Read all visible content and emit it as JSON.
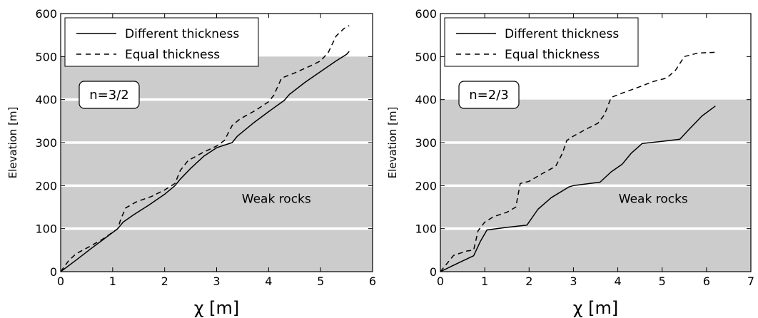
{
  "chart_data": [
    {
      "type": "line",
      "xlabel": "χ [m]",
      "ylabel": "Elevation [m]",
      "xlim": [
        0,
        6
      ],
      "ylim": [
        0,
        600
      ],
      "xticks": [
        0,
        1,
        2,
        3,
        4,
        5,
        6
      ],
      "yticks": [
        0,
        100,
        200,
        300,
        400,
        500,
        600
      ],
      "legend": "top-left",
      "annotation": "n=3/2",
      "region_label": "Weak rocks",
      "weak_rocks": {
        "y_range": [
          0,
          500
        ],
        "boundaries": [
          100,
          200,
          300,
          400
        ],
        "color": "#cccccc"
      },
      "series": [
        {
          "name": "Different thickness",
          "style": "solid",
          "x": [
            0,
            0.3,
            0.6,
            0.9,
            1.1,
            1.2,
            1.4,
            1.7,
            2.0,
            2.2,
            2.3,
            2.5,
            2.75,
            3.0,
            3.3,
            3.4,
            3.7,
            4.0,
            4.3,
            4.4,
            4.7,
            5.0,
            5.3,
            5.5,
            5.55
          ],
          "y": [
            0,
            27,
            55,
            82,
            100,
            115,
            132,
            155,
            180,
            200,
            215,
            240,
            268,
            288,
            300,
            315,
            345,
            372,
            398,
            412,
            440,
            465,
            490,
            505,
            512
          ]
        },
        {
          "name": "Equal thickness",
          "style": "dashed",
          "x": [
            0,
            0.15,
            0.3,
            0.55,
            0.8,
            1.1,
            1.15,
            1.25,
            1.45,
            1.75,
            2.0,
            2.2,
            2.3,
            2.45,
            2.75,
            3.0,
            3.15,
            3.3,
            3.45,
            3.75,
            4.0,
            4.1,
            4.25,
            4.5,
            4.8,
            5.0,
            5.15,
            5.3,
            5.45,
            5.55
          ],
          "y": [
            0,
            25,
            42,
            58,
            75,
            100,
            120,
            148,
            162,
            175,
            190,
            205,
            235,
            258,
            278,
            292,
            305,
            340,
            355,
            375,
            395,
            410,
            450,
            462,
            478,
            490,
            510,
            548,
            565,
            572
          ]
        }
      ]
    },
    {
      "type": "line",
      "xlabel": "χ [m]",
      "ylabel": "Elevation [m]",
      "xlim": [
        0,
        7
      ],
      "ylim": [
        0,
        600
      ],
      "xticks": [
        0,
        1,
        2,
        3,
        4,
        5,
        6,
        7
      ],
      "yticks": [
        0,
        100,
        200,
        300,
        400,
        500,
        600
      ],
      "legend": "top-left",
      "annotation": "n=2/3",
      "region_label": "Weak rocks",
      "weak_rocks": {
        "y_range": [
          0,
          400
        ],
        "boundaries": [
          100,
          200,
          300
        ],
        "color": "#cccccc"
      },
      "series": [
        {
          "name": "Different thickness",
          "style": "solid",
          "x": [
            0,
            0.4,
            0.75,
            0.9,
            1.05,
            1.5,
            1.95,
            2.2,
            2.5,
            2.9,
            3.0,
            3.6,
            3.85,
            4.1,
            4.3,
            4.55,
            5.0,
            5.4,
            5.6,
            5.9,
            6.2
          ],
          "y": [
            0,
            20,
            37,
            70,
            97,
            103,
            108,
            145,
            172,
            197,
            200,
            208,
            232,
            250,
            275,
            298,
            303,
            308,
            330,
            362,
            385
          ]
        },
        {
          "name": "Equal thickness",
          "style": "dashed",
          "x": [
            0,
            0.3,
            0.6,
            0.75,
            0.85,
            1.0,
            1.2,
            1.5,
            1.7,
            1.8,
            2.0,
            2.3,
            2.6,
            2.75,
            2.85,
            3.0,
            3.3,
            3.55,
            3.7,
            3.85,
            4.1,
            4.5,
            4.8,
            5.1,
            5.3,
            5.5,
            5.8,
            6.2
          ],
          "y": [
            0,
            38,
            48,
            50,
            95,
            115,
            128,
            138,
            150,
            205,
            210,
            228,
            245,
            275,
            305,
            315,
            332,
            345,
            365,
            405,
            415,
            430,
            442,
            450,
            468,
            500,
            508,
            510
          ]
        }
      ]
    }
  ]
}
